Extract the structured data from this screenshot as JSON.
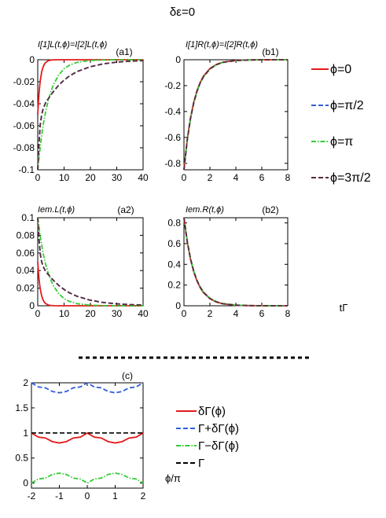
{
  "figure_title": "δε=0",
  "top_legend": [
    {
      "label": "ϕ=0",
      "color": "#e41a1c",
      "dash": "solid"
    },
    {
      "label": "ϕ=π/2",
      "color": "#2f5fd8",
      "dash": "dashed"
    },
    {
      "label": "ϕ=π",
      "color": "#33cc33",
      "dash": "dashdot"
    },
    {
      "label": "ϕ=3π/2",
      "color": "#5c2a3a",
      "dash": "dashed"
    }
  ],
  "bottom_legend": [
    {
      "label": "δΓ(ϕ)",
      "color": "#e41a1c",
      "dash": "solid"
    },
    {
      "label": "Γ+δΓ(ϕ)",
      "color": "#2f5fd8",
      "dash": "dashed"
    },
    {
      "label": "Γ−δΓ(ϕ)",
      "color": "#33cc33",
      "dash": "dashdot"
    },
    {
      "label": "Γ",
      "color": "#000000",
      "dash": "dashed"
    }
  ],
  "x_axis_label_b2": "tΓ",
  "x_axis_label_c": "ϕ/π",
  "chart_data": [
    {
      "id": "a1",
      "type": "line",
      "tag": "(a1)",
      "ylabel": "I[1]L(t,ϕ)=I[2]L(t,ϕ)",
      "xlim": [
        0,
        40
      ],
      "ylim": [
        -0.1,
        0
      ],
      "xticks": [
        0,
        10,
        20,
        30,
        40
      ],
      "yticks": [
        -0.1,
        -0.08,
        -0.06,
        -0.04,
        -0.02,
        0
      ],
      "ytick_labels": [
        "-0.1",
        "-0.08",
        "-0.06",
        "-0.04",
        "-0.02",
        "0"
      ],
      "series": [
        {
          "legend": 0,
          "x": [
            0,
            0.25,
            0.5,
            0.75,
            1,
            1.5,
            2,
            2.5,
            3,
            4,
            5,
            6,
            8,
            10,
            20,
            40
          ],
          "y": [
            -0.05,
            -0.0392,
            -0.0303,
            -0.0236,
            -0.0184,
            -0.0111,
            -0.0068,
            -0.0041,
            -0.0025,
            -0.0009,
            -0.0003,
            -0.0001,
            0,
            0,
            0,
            0
          ]
        },
        {
          "legend": 1,
          "x": [
            0,
            0.5,
            1,
            1.5,
            2,
            3,
            4,
            5,
            6,
            8,
            10,
            12,
            15,
            20,
            25,
            30,
            35,
            40
          ],
          "y": [
            -0.1,
            -0.075,
            -0.058,
            -0.05,
            -0.045,
            -0.039,
            -0.0355,
            -0.032,
            -0.0288,
            -0.023,
            -0.0185,
            -0.0148,
            -0.0107,
            -0.0063,
            -0.0037,
            -0.0022,
            -0.0013,
            -0.0008
          ]
        },
        {
          "legend": 2,
          "x": [
            0,
            1,
            2,
            3,
            4,
            5,
            6,
            8,
            10,
            12,
            15,
            20,
            25,
            30,
            40
          ],
          "y": [
            -0.1,
            -0.078,
            -0.06,
            -0.047,
            -0.037,
            -0.029,
            -0.0225,
            -0.0136,
            -0.0082,
            -0.005,
            -0.0023,
            -0.0007,
            -0.0002,
            0,
            0
          ]
        },
        {
          "legend": 3,
          "x": [
            0,
            0.5,
            1,
            1.5,
            2,
            3,
            4,
            5,
            6,
            8,
            10,
            12,
            15,
            20,
            25,
            30,
            35,
            40
          ],
          "y": [
            -0.1,
            -0.075,
            -0.058,
            -0.05,
            -0.045,
            -0.039,
            -0.0355,
            -0.032,
            -0.0288,
            -0.023,
            -0.0185,
            -0.0148,
            -0.0107,
            -0.0063,
            -0.0037,
            -0.0022,
            -0.0013,
            -0.0008
          ]
        }
      ]
    },
    {
      "id": "b1",
      "type": "line",
      "tag": "(b1)",
      "ylabel": "I[1]R(t,ϕ)=I[2]R(t,ϕ)",
      "xlim": [
        0,
        8
      ],
      "ylim": [
        -0.85,
        0
      ],
      "xticks": [
        0,
        2,
        4,
        6,
        8
      ],
      "yticks": [
        -0.8,
        -0.6,
        -0.4,
        -0.2,
        0
      ],
      "ytick_labels": [
        "-0.8",
        "-0.6",
        "-0.4",
        "-0.2",
        "0"
      ],
      "series": [
        {
          "legend": 0,
          "x": [
            0,
            0.25,
            0.5,
            0.75,
            1,
            1.25,
            1.5,
            2,
            2.5,
            3,
            4,
            5,
            6,
            8
          ],
          "y": [
            -0.85,
            -0.619,
            -0.452,
            -0.329,
            -0.24,
            -0.175,
            -0.127,
            -0.068,
            -0.036,
            -0.019,
            -0.0053,
            -0.0015,
            -0.0004,
            0
          ]
        },
        {
          "legend": 1,
          "x": [
            0,
            0.25,
            0.5,
            0.75,
            1,
            1.25,
            1.5,
            2,
            2.5,
            3,
            4,
            5,
            6,
            8
          ],
          "y": [
            -0.85,
            -0.622,
            -0.456,
            -0.334,
            -0.245,
            -0.179,
            -0.131,
            -0.071,
            -0.038,
            -0.02,
            -0.006,
            -0.0017,
            -0.0005,
            0
          ]
        },
        {
          "legend": 2,
          "x": [
            0,
            0.25,
            0.5,
            0.75,
            1,
            1.25,
            1.5,
            2,
            2.5,
            3,
            4,
            5,
            6,
            8
          ],
          "y": [
            -0.85,
            -0.624,
            -0.459,
            -0.337,
            -0.248,
            -0.182,
            -0.134,
            -0.072,
            -0.039,
            -0.021,
            -0.0062,
            -0.0018,
            -0.0005,
            0
          ]
        },
        {
          "legend": 3,
          "x": [
            0,
            0.25,
            0.5,
            0.75,
            1,
            1.25,
            1.5,
            2,
            2.5,
            3,
            4,
            5,
            6,
            8
          ],
          "y": [
            -0.85,
            -0.622,
            -0.456,
            -0.334,
            -0.245,
            -0.179,
            -0.131,
            -0.071,
            -0.038,
            -0.02,
            -0.006,
            -0.0017,
            -0.0005,
            0
          ]
        }
      ]
    },
    {
      "id": "a2",
      "type": "line",
      "tag": "(a2)",
      "ylabel": "Iem.L(t,ϕ)",
      "xlim": [
        0,
        40
      ],
      "ylim": [
        0,
        0.1
      ],
      "xticks": [
        0,
        10,
        20,
        30,
        40
      ],
      "yticks": [
        0,
        0.02,
        0.04,
        0.06,
        0.08,
        0.1
      ],
      "ytick_labels": [
        "0",
        "0.02",
        "0.04",
        "0.06",
        "0.08",
        "0.1"
      ],
      "series": [
        {
          "legend": 0,
          "x": [
            0,
            0.25,
            0.5,
            0.75,
            1,
            1.5,
            2,
            2.5,
            3,
            4,
            5,
            6,
            8,
            10,
            20,
            40
          ],
          "y": [
            0.05,
            0.0392,
            0.0303,
            0.0236,
            0.0184,
            0.0111,
            0.0068,
            0.0041,
            0.0025,
            0.0009,
            0.0003,
            0.0001,
            0,
            0,
            0,
            0
          ]
        },
        {
          "legend": 1,
          "x": [
            0,
            0.5,
            1,
            1.5,
            2,
            3,
            4,
            5,
            6,
            8,
            10,
            12,
            15,
            20,
            25,
            30,
            35,
            40
          ],
          "y": [
            0.1,
            0.075,
            0.058,
            0.05,
            0.045,
            0.039,
            0.0355,
            0.032,
            0.0288,
            0.023,
            0.0185,
            0.0148,
            0.0107,
            0.0063,
            0.0037,
            0.0022,
            0.0013,
            0.0008
          ]
        },
        {
          "legend": 2,
          "x": [
            0,
            1,
            2,
            3,
            4,
            5,
            6,
            8,
            10,
            12,
            15,
            20,
            25,
            30,
            40
          ],
          "y": [
            0.1,
            0.078,
            0.06,
            0.047,
            0.037,
            0.029,
            0.0225,
            0.0136,
            0.0082,
            0.005,
            0.0023,
            0.0007,
            0.0002,
            0,
            0
          ]
        },
        {
          "legend": 3,
          "x": [
            0,
            0.5,
            1,
            1.5,
            2,
            3,
            4,
            5,
            6,
            8,
            10,
            12,
            15,
            20,
            25,
            30,
            35,
            40
          ],
          "y": [
            0.1,
            0.075,
            0.058,
            0.05,
            0.045,
            0.039,
            0.0355,
            0.032,
            0.0288,
            0.023,
            0.0185,
            0.0148,
            0.0107,
            0.0063,
            0.0037,
            0.0022,
            0.0013,
            0.0008
          ]
        }
      ]
    },
    {
      "id": "b2",
      "type": "line",
      "tag": "(b2)",
      "ylabel": "Iem.R(t,ϕ)",
      "xlim": [
        0,
        8
      ],
      "ylim": [
        0,
        0.85
      ],
      "xticks": [
        0,
        2,
        4,
        6,
        8
      ],
      "yticks": [
        0,
        0.2,
        0.4,
        0.6,
        0.8
      ],
      "ytick_labels": [
        "0",
        "0.2",
        "0.4",
        "0.6",
        "0.8"
      ],
      "series": [
        {
          "legend": 0,
          "x": [
            0,
            0.25,
            0.5,
            0.75,
            1,
            1.25,
            1.5,
            2,
            2.5,
            3,
            4,
            5,
            6,
            8
          ],
          "y": [
            0.85,
            0.619,
            0.452,
            0.329,
            0.24,
            0.175,
            0.127,
            0.068,
            0.036,
            0.019,
            0.0053,
            0.0015,
            0.0004,
            0
          ]
        },
        {
          "legend": 1,
          "x": [
            0,
            0.25,
            0.5,
            0.75,
            1,
            1.25,
            1.5,
            2,
            2.5,
            3,
            4,
            5,
            6,
            8
          ],
          "y": [
            0.85,
            0.622,
            0.456,
            0.334,
            0.245,
            0.179,
            0.131,
            0.071,
            0.038,
            0.02,
            0.006,
            0.0017,
            0.0005,
            0
          ]
        },
        {
          "legend": 2,
          "x": [
            0,
            0.25,
            0.5,
            0.75,
            1,
            1.25,
            1.5,
            2,
            2.5,
            3,
            4,
            5,
            6,
            8
          ],
          "y": [
            0.85,
            0.624,
            0.459,
            0.337,
            0.248,
            0.182,
            0.134,
            0.072,
            0.039,
            0.021,
            0.0062,
            0.0018,
            0.0005,
            0
          ]
        },
        {
          "legend": 3,
          "x": [
            0,
            0.25,
            0.5,
            0.75,
            1,
            1.25,
            1.5,
            2,
            2.5,
            3,
            4,
            5,
            6,
            8
          ],
          "y": [
            0.85,
            0.622,
            0.456,
            0.334,
            0.245,
            0.179,
            0.131,
            0.071,
            0.038,
            0.02,
            0.006,
            0.0017,
            0.0005,
            0
          ]
        }
      ]
    },
    {
      "id": "c",
      "type": "line",
      "tag": "(c)",
      "ylabel": "",
      "xlim": [
        -2,
        2
      ],
      "ylim": [
        -0.1,
        2
      ],
      "xticks": [
        -2,
        -1,
        0,
        1,
        2
      ],
      "yticks": [
        0,
        0.5,
        1,
        1.5,
        2
      ],
      "ytick_labels": [
        "0",
        "0.5",
        "1",
        "1.5",
        "2"
      ],
      "series": [
        {
          "legend": 0,
          "x": [
            -2,
            -1.75,
            -1.5,
            -1.25,
            -1,
            -0.75,
            -0.5,
            -0.25,
            0,
            0.25,
            0.5,
            0.75,
            1,
            1.25,
            1.5,
            1.75,
            2
          ],
          "y": [
            1,
            0.917,
            0.9,
            0.827,
            0.8,
            0.827,
            0.9,
            0.917,
            1,
            0.917,
            0.9,
            0.827,
            0.8,
            0.827,
            0.9,
            0.917,
            1
          ]
        },
        {
          "legend": 1,
          "x": [
            -2,
            -1.75,
            -1.5,
            -1.25,
            -1,
            -0.75,
            -0.5,
            -0.25,
            0,
            0.25,
            0.5,
            0.75,
            1,
            1.25,
            1.5,
            1.75,
            2
          ],
          "y": [
            2,
            1.917,
            1.9,
            1.827,
            1.8,
            1.827,
            1.9,
            1.917,
            2,
            1.917,
            1.9,
            1.827,
            1.8,
            1.827,
            1.9,
            1.917,
            2
          ]
        },
        {
          "legend": 2,
          "x": [
            -2,
            -1.75,
            -1.5,
            -1.25,
            -1,
            -0.75,
            -0.5,
            -0.25,
            0,
            0.25,
            0.5,
            0.75,
            1,
            1.25,
            1.5,
            1.75,
            2
          ],
          "y": [
            0,
            0.083,
            0.1,
            0.173,
            0.2,
            0.173,
            0.1,
            0.083,
            0,
            0.083,
            0.1,
            0.173,
            0.2,
            0.173,
            0.1,
            0.083,
            0
          ]
        },
        {
          "legend": 3,
          "x": [
            -2,
            2
          ],
          "y": [
            1,
            1
          ]
        }
      ]
    }
  ]
}
